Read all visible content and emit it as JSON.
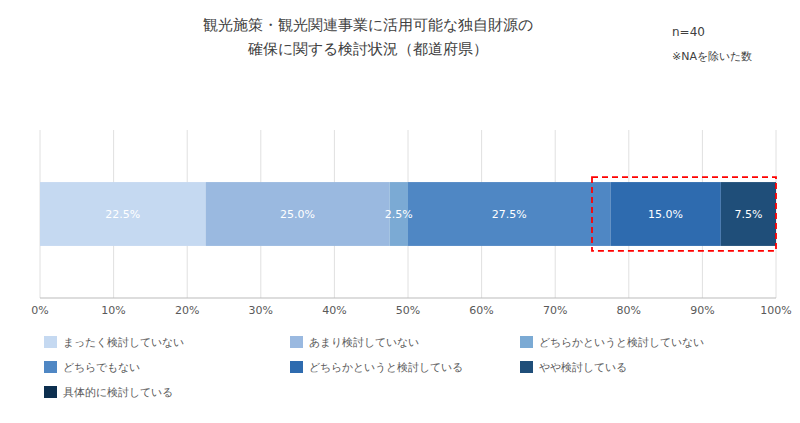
{
  "chart_data": {
    "type": "bar",
    "orientation": "horizontal",
    "stacked": true,
    "title": "観光施策・観光関連事業に活用可能な独自財源の\n確保に関する検討状況（都道府県）",
    "annotations": [
      "n=40",
      "※NAを除いた数"
    ],
    "categories": [
      null
    ],
    "series": [
      {
        "name": "まったく検討していない",
        "color": "#c5d9f1",
        "values": [
          22.5
        ],
        "value_labels": [
          "22.5%"
        ]
      },
      {
        "name": "あまり検討していない",
        "color": "#9ab9e0",
        "values": [
          25.0
        ],
        "value_labels": [
          "25.0%"
        ]
      },
      {
        "name": "どちらかというと検討していない",
        "color": "#7baad4",
        "values": [
          2.5
        ],
        "value_labels": [
          "2.5%"
        ]
      },
      {
        "name": "どちらでもない",
        "color": "#4f87c4",
        "values": [
          27.5
        ],
        "value_labels": [
          "27.5%"
        ]
      },
      {
        "name": "どちらかというと検討している",
        "color": "#2e6baf",
        "values": [
          15.0
        ],
        "value_labels": [
          "15.0%"
        ]
      },
      {
        "name": "やや検討している",
        "color": "#1f4e79",
        "values": [
          7.5
        ],
        "value_labels": [
          "7.5%"
        ]
      },
      {
        "name": "具体的に検討している",
        "color": "#0d2f4f",
        "values": [
          0.0
        ],
        "value_labels": [
          null
        ]
      }
    ],
    "highlight": {
      "xlim": [
        75.0,
        100.0
      ],
      "color": "red"
    },
    "xlim": [
      0,
      100
    ],
    "xticks": [
      {
        "value": 0,
        "label": "0%"
      },
      {
        "value": 10,
        "label": "10%"
      },
      {
        "value": 20,
        "label": "20%"
      },
      {
        "value": 30,
        "label": "30%"
      },
      {
        "value": 40,
        "label": "40%"
      },
      {
        "value": 50,
        "label": "50%"
      },
      {
        "value": 60,
        "label": "60%"
      },
      {
        "value": 70,
        "label": "70%"
      },
      {
        "value": 80,
        "label": "80%"
      },
      {
        "value": 90,
        "label": "90%"
      },
      {
        "value": 100,
        "label": "100%"
      }
    ],
    "grid": true,
    "data_labels": true,
    "legend": "bottom"
  }
}
